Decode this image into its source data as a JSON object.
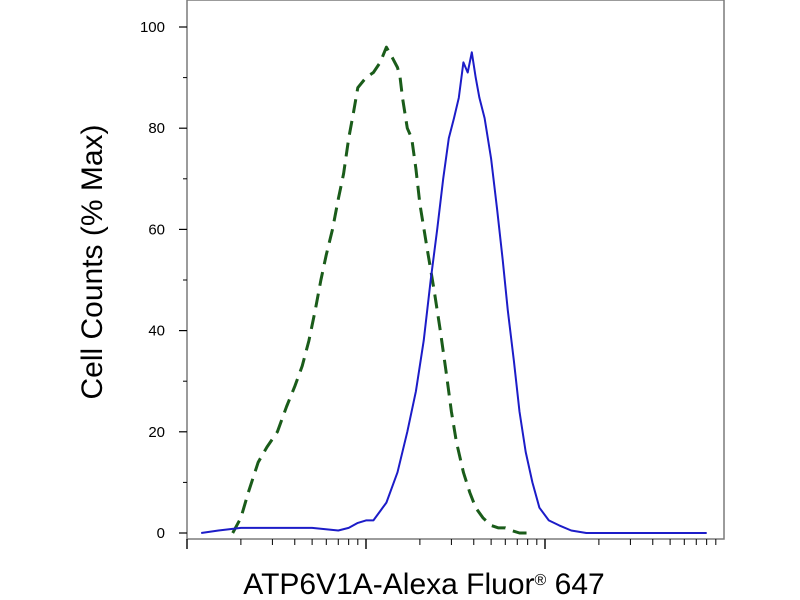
{
  "chart_data": {
    "type": "line",
    "title": "",
    "xlabel": "ATP6V1A-Alexa Fluor",
    "xlabel_mark": "®",
    "xlabel_suffix": " 647",
    "ylabel": "Cell Counts (% Max)",
    "x_scale": "log",
    "xlim": [
      100000,
      100000000
    ],
    "ylim": [
      0,
      104
    ],
    "y_ticks": [
      "0",
      "20",
      "40",
      "60",
      "80",
      "100"
    ],
    "grid": false,
    "series": [
      {
        "style": "dashed",
        "color": "#1a5c1a",
        "x": [
          180000,
          200000,
          220000,
          250000,
          280000,
          320000,
          360000,
          400000,
          440000,
          480000,
          520000,
          560000,
          600000,
          650000,
          700000,
          750000,
          800000,
          850000,
          900000,
          1000000,
          1100000,
          1200000,
          1300000,
          1400000,
          1500000,
          1550000,
          1600000,
          1700000,
          1800000,
          1900000,
          2000000,
          2200000,
          2400000,
          2600000,
          2800000,
          3000000,
          3200000,
          3500000,
          3800000,
          4100000,
          4500000,
          5000000,
          5500000,
          6000000,
          6500000,
          7200000,
          8000000
        ],
        "y": [
          0,
          3,
          8,
          14,
          17,
          20,
          25,
          29,
          33,
          38,
          44,
          50,
          55,
          60,
          66,
          71,
          78,
          83,
          88,
          90,
          91,
          93,
          96,
          94,
          92,
          90,
          86,
          80,
          78,
          72,
          65,
          56,
          48,
          40,
          32,
          24,
          18,
          12,
          8,
          5,
          3,
          1.5,
          1,
          1,
          0.5,
          0,
          0
        ]
      },
      {
        "style": "solid",
        "color": "#1c1cc8",
        "x": [
          120000,
          150000,
          200000,
          300000,
          500000,
          700000,
          800000,
          900000,
          1000000,
          1100000,
          1300000,
          1500000,
          1700000,
          1900000,
          2100000,
          2300000,
          2500000,
          2700000,
          2900000,
          3100000,
          3300000,
          3500000,
          3700000,
          3900000,
          4100000,
          4300000,
          4600000,
          5000000,
          5400000,
          5800000,
          6200000,
          6700000,
          7200000,
          7800000,
          8500000,
          9300000,
          10500000,
          12000000,
          14000000,
          17000000,
          20000000,
          30000000,
          50000000,
          80000000
        ],
        "y": [
          0,
          0.5,
          1,
          1,
          1,
          0.5,
          1,
          2,
          2.5,
          2.5,
          6,
          12,
          20,
          28,
          38,
          50,
          60,
          70,
          78,
          82,
          86,
          93,
          91,
          95,
          90,
          86,
          82,
          74,
          64,
          54,
          44,
          34,
          24,
          16,
          10,
          5,
          2.5,
          1.5,
          0.5,
          0,
          0,
          0,
          0,
          0
        ]
      }
    ]
  }
}
